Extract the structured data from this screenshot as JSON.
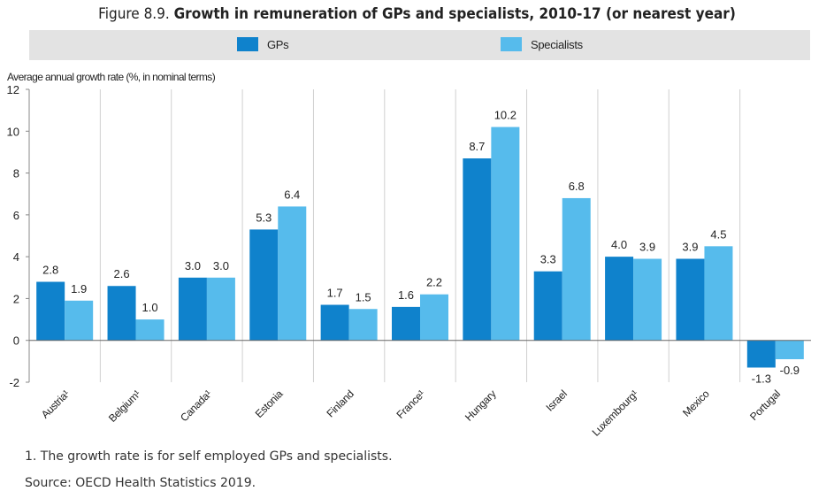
{
  "header": {
    "figure_label": "Figure 8.9.",
    "title": "Growth in remuneration of GPs and specialists, 2010-17 (or nearest year)"
  },
  "footer": {
    "note": "1. The growth rate is for self employed GPs and specialists.",
    "source": "Source: OECD Health Statistics 2019."
  },
  "chart_data": {
    "type": "bar",
    "title": "Growth in remuneration of GPs and specialists, 2010-17 (or nearest year)",
    "ylabel": "Average annual growth rate (%, in nominal terms)",
    "xlabel": "",
    "ylim": [
      -2,
      12
    ],
    "yticks": [
      -2,
      0,
      2,
      4,
      6,
      8,
      10,
      12
    ],
    "grid": "vertical separators between categories",
    "legend_position": "top",
    "categories": [
      "Austria¹",
      "Belgium¹",
      "Canada¹",
      "Estonia",
      "Finland",
      "France¹",
      "Hungary",
      "Israel",
      "Luxembourg¹",
      "Mexico",
      "Portugal"
    ],
    "series": [
      {
        "name": "GPs",
        "color": "#0f82cc",
        "values": [
          2.8,
          2.6,
          3.0,
          5.3,
          1.7,
          1.6,
          8.7,
          3.3,
          4.0,
          3.9,
          -1.3
        ],
        "labels": [
          "2.8",
          "2.6",
          "3.0",
          "5.3",
          "1.7",
          "1.6",
          "8.7",
          "3.3",
          "4.0",
          "3.9",
          "-1.3"
        ]
      },
      {
        "name": "Specialists",
        "color": "#56bbec",
        "values": [
          1.9,
          1.0,
          3.0,
          6.4,
          1.5,
          2.2,
          10.2,
          6.8,
          3.9,
          4.5,
          -0.9
        ],
        "labels": [
          "1.9",
          "1.0",
          "3.0",
          "6.4",
          "1.5",
          "2.2",
          "10.2",
          "6.8",
          "3.9",
          "4.5",
          "-0.9"
        ]
      }
    ]
  }
}
